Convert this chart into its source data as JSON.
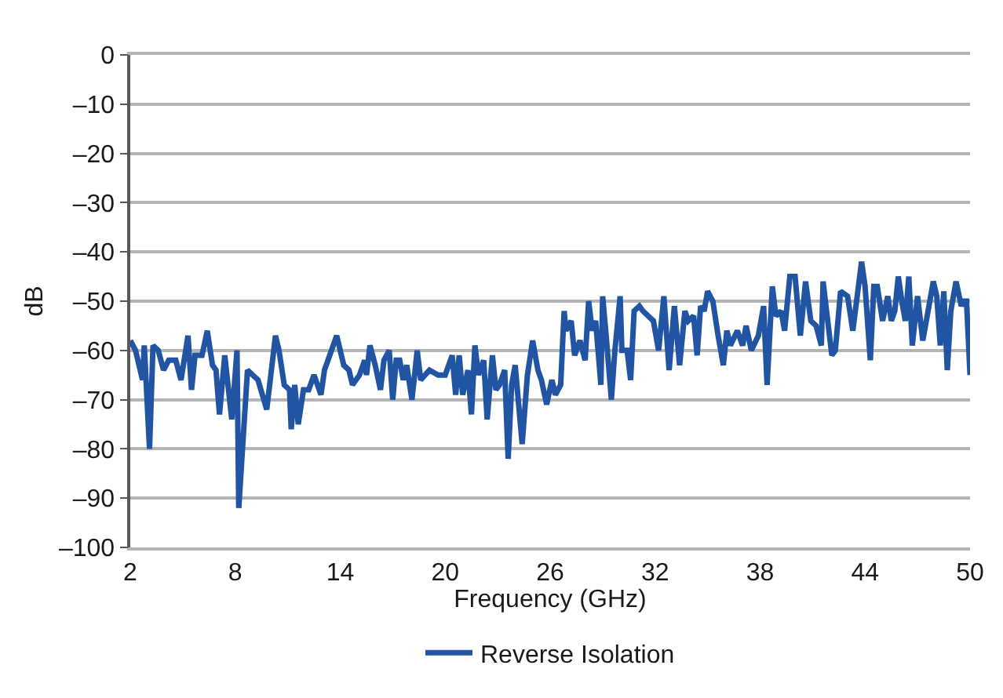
{
  "chart_data": {
    "type": "line",
    "xlabel": "Frequency (GHz)",
    "ylabel": "dB",
    "x": [
      2.0,
      2.3,
      2.7,
      2.8,
      3.1,
      3.3,
      3.6,
      3.9,
      4.2,
      4.6,
      4.9,
      5.3,
      5.5,
      5.7,
      6.1,
      6.4,
      6.7,
      6.9,
      7.1,
      7.4,
      7.8,
      8.1,
      8.2,
      8.7,
      9.0,
      9.3,
      9.8,
      10.3,
      10.5,
      10.8,
      11.1,
      11.2,
      11.4,
      11.6,
      11.9,
      12.2,
      12.5,
      12.9,
      13.1,
      13.8,
      14.2,
      14.5,
      14.7,
      15.1,
      15.4,
      15.5,
      15.7,
      16.0,
      16.3,
      16.5,
      16.8,
      17.0,
      17.2,
      17.4,
      17.6,
      17.8,
      18.1,
      18.4,
      18.6,
      19.1,
      19.6,
      20.0,
      20.4,
      20.6,
      20.8,
      21.0,
      21.3,
      21.5,
      21.7,
      21.9,
      22.2,
      22.4,
      22.7,
      22.9,
      23.1,
      23.4,
      23.6,
      23.8,
      24.0,
      24.4,
      24.7,
      25.0,
      25.3,
      25.5,
      25.8,
      26.1,
      26.3,
      26.6,
      26.8,
      26.9,
      27.2,
      27.4,
      27.7,
      28.0,
      28.2,
      28.4,
      28.6,
      28.9,
      29.0,
      29.2,
      29.5,
      29.7,
      30.0,
      30.1,
      30.4,
      30.6,
      30.8,
      31.1,
      31.3,
      31.9,
      32.2,
      32.5,
      32.8,
      33.1,
      33.4,
      33.7,
      33.9,
      34.2,
      34.4,
      34.6,
      34.8,
      35.0,
      35.3,
      35.6,
      35.9,
      36.1,
      36.3,
      36.7,
      37.0,
      37.2,
      37.5,
      37.9,
      38.2,
      38.4,
      38.7,
      38.9,
      39.2,
      39.4,
      39.7,
      40.0,
      40.3,
      40.6,
      40.9,
      41.2,
      41.5,
      41.6,
      41.8,
      42.1,
      42.3,
      42.6,
      43.0,
      43.3,
      43.8,
      44.0,
      44.3,
      44.5,
      44.7,
      45.0,
      45.3,
      45.5,
      45.7,
      45.9,
      46.1,
      46.3,
      46.5,
      46.7,
      47.0,
      47.3,
      47.5,
      47.9,
      48.1,
      48.3,
      48.5,
      48.7,
      48.9,
      49.2,
      49.5,
      49.6,
      49.8,
      50.0
    ],
    "series": [
      {
        "name": "Reverse Isolation",
        "color": "#2155a4",
        "values": [
          -58,
          -60,
          -66,
          -59,
          -80,
          -59,
          -60,
          -64,
          -62,
          -62,
          -66,
          -57,
          -68,
          -61,
          -61,
          -56,
          -63,
          -64,
          -73,
          -61,
          -74,
          -60,
          -92,
          -64,
          -65,
          -66,
          -72,
          -57,
          -60,
          -67,
          -68,
          -76,
          -67,
          -75,
          -68,
          -68,
          -65,
          -69,
          -64,
          -57,
          -63,
          -64,
          -67,
          -65,
          -62,
          -65,
          -59,
          -63,
          -68,
          -62,
          -60,
          -70,
          -62,
          -62,
          -66,
          -63,
          -70,
          -60,
          -66,
          -64,
          -65,
          -65,
          -61,
          -69,
          -61,
          -69,
          -64,
          -73,
          -59,
          -65,
          -62,
          -74,
          -61,
          -68,
          -67,
          -64,
          -82,
          -67,
          -63,
          -79,
          -65,
          -58,
          -64,
          -66,
          -71,
          -66,
          -69,
          -67,
          -52,
          -56,
          -54,
          -61,
          -58,
          -62,
          -50,
          -56,
          -54,
          -67,
          -49,
          -57,
          -70,
          -60,
          -49,
          -60,
          -60,
          -66,
          -52,
          -51,
          -52,
          -54,
          -60,
          -49,
          -64,
          -51,
          -63,
          -52,
          -54,
          -53,
          -61,
          -51,
          -52,
          -48,
          -50,
          -57,
          -63,
          -56,
          -59,
          -56,
          -59,
          -55,
          -60,
          -57,
          -51,
          -67,
          -47,
          -53,
          -52,
          -56,
          -45,
          -45,
          -57,
          -46,
          -54,
          -55,
          -59,
          -46,
          -52,
          -61,
          -60,
          -48,
          -49,
          -56,
          -42,
          -47,
          -62,
          -47,
          -47,
          -54,
          -49,
          -54,
          -52,
          -45,
          -50,
          -54,
          -45,
          -59,
          -49,
          -58,
          -54,
          -46,
          -49,
          -59,
          -48,
          -64,
          -52,
          -46,
          -51,
          -50,
          -50,
          -65
        ]
      }
    ],
    "xlim": [
      2,
      50
    ],
    "xticks": [
      2,
      8,
      14,
      20,
      26,
      32,
      38,
      44,
      50
    ],
    "ylim": [
      -100,
      0
    ],
    "yticks": [
      0,
      {
        "value": -10,
        "label": "–10"
      },
      {
        "value": -20,
        "label": "–20"
      },
      {
        "value": -30,
        "label": "–30"
      },
      {
        "value": -40,
        "label": "–40"
      },
      {
        "value": -50,
        "label": "–50"
      },
      {
        "value": -60,
        "label": "–60"
      },
      {
        "value": -70,
        "label": "–70"
      },
      {
        "value": -80,
        "label": "–80"
      },
      {
        "value": -90,
        "label": "–90"
      },
      {
        "value": -100,
        "label": "–100"
      }
    ],
    "grid": "y",
    "legend": "bottom",
    "line_style": "solid"
  }
}
